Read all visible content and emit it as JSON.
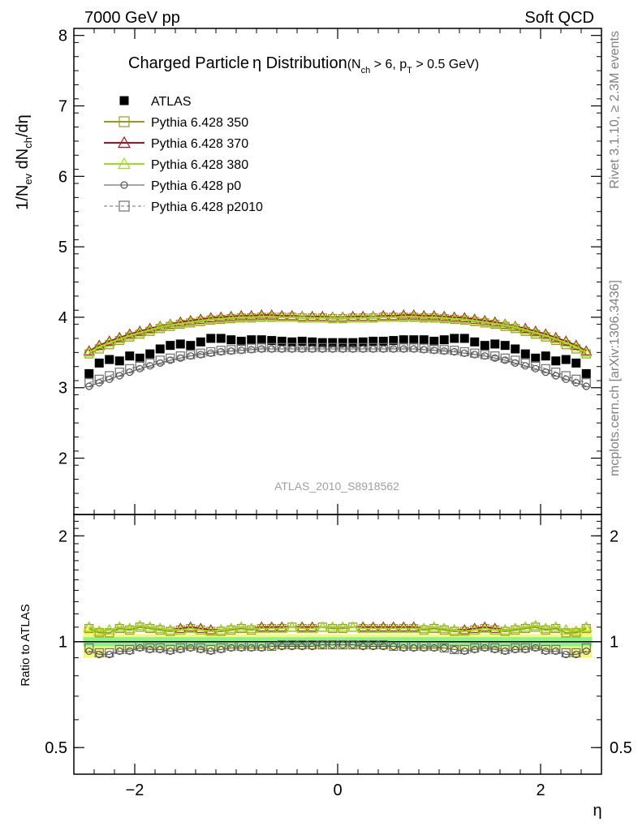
{
  "header": {
    "left": "7000 GeV pp",
    "right": "Soft QCD"
  },
  "side_labels": {
    "rivet": "Rivet 3.1.10, ≥ 2.3M events",
    "mcplots": "mcplots.cern.ch [arXiv:1306.3436]"
  },
  "colors": {
    "atlas": "#000000",
    "p350": "#9a9a20",
    "p370": "#aa1020",
    "p380": "#9ae020",
    "p0": "#505050",
    "p2010": "#707070",
    "band_inner": "#8cf08c",
    "band_outer": "#f8f878"
  },
  "chart_data": [
    {
      "type": "scatter",
      "title_main": "Charged Particle",
      "title_eta": "η",
      "title_rest": " Distribution",
      "title_paren_open": "(N",
      "title_sub_ch": "ch",
      "title_mid": " > 6, p",
      "title_sub_T": "T",
      "title_end": " > 0.5 GeV)",
      "ylabel_parts": {
        "a": "1/N",
        "sub_ev": "ev",
        "b": " dN",
        "sub_ch": "ch",
        "c": "/dη"
      },
      "analysis_label": "ATLAS_2010_S8918562",
      "ylim": [
        1.2,
        8.1
      ],
      "xlim": [
        -2.6,
        2.6
      ],
      "yticks": [
        2,
        3,
        4,
        5,
        6,
        7,
        8
      ],
      "ytick_labels": [
        "2",
        "3",
        "4",
        "5",
        "6",
        "7",
        "8"
      ],
      "legend_position": "top-left",
      "x": [
        -2.45,
        -2.35,
        -2.25,
        -2.15,
        -2.05,
        -1.95,
        -1.85,
        -1.75,
        -1.65,
        -1.55,
        -1.45,
        -1.35,
        -1.25,
        -1.15,
        -1.05,
        -0.95,
        -0.85,
        -0.75,
        -0.65,
        -0.55,
        -0.45,
        -0.35,
        -0.25,
        -0.15,
        -0.05,
        0.05,
        0.15,
        0.25,
        0.35,
        0.45,
        0.55,
        0.65,
        0.75,
        0.85,
        0.95,
        1.05,
        1.15,
        1.25,
        1.35,
        1.45,
        1.55,
        1.65,
        1.75,
        1.85,
        1.95,
        2.05,
        2.15,
        2.25,
        2.35,
        2.45
      ],
      "series": [
        {
          "name": "ATLAS",
          "key": "atlas",
          "marker": "filled-square",
          "values": [
            3.2,
            3.35,
            3.4,
            3.38,
            3.45,
            3.42,
            3.48,
            3.55,
            3.6,
            3.62,
            3.6,
            3.65,
            3.7,
            3.7,
            3.68,
            3.66,
            3.68,
            3.68,
            3.67,
            3.66,
            3.65,
            3.66,
            3.65,
            3.64,
            3.64,
            3.64,
            3.64,
            3.65,
            3.66,
            3.66,
            3.67,
            3.68,
            3.68,
            3.68,
            3.66,
            3.68,
            3.7,
            3.7,
            3.65,
            3.6,
            3.62,
            3.6,
            3.55,
            3.48,
            3.42,
            3.45,
            3.38,
            3.4,
            3.35,
            3.2
          ]
        },
        {
          "name": "Pythia 6.428 350",
          "key": "p350",
          "marker": "open-square",
          "values": [
            3.48,
            3.55,
            3.61,
            3.67,
            3.72,
            3.76,
            3.8,
            3.84,
            3.87,
            3.9,
            3.92,
            3.94,
            3.96,
            3.97,
            3.98,
            3.99,
            3.99,
            4.0,
            4.0,
            4.0,
            4.0,
            3.99,
            3.99,
            3.99,
            3.98,
            3.98,
            3.99,
            3.99,
            3.99,
            4.0,
            4.0,
            4.0,
            4.0,
            3.99,
            3.99,
            3.98,
            3.97,
            3.96,
            3.94,
            3.92,
            3.9,
            3.87,
            3.84,
            3.8,
            3.76,
            3.72,
            3.67,
            3.61,
            3.55,
            3.48
          ]
        },
        {
          "name": "Pythia 6.428 370",
          "key": "p370",
          "marker": "open-triangle",
          "values": [
            3.52,
            3.6,
            3.66,
            3.71,
            3.76,
            3.8,
            3.84,
            3.87,
            3.9,
            3.93,
            3.95,
            3.97,
            3.99,
            4.0,
            4.01,
            4.02,
            4.02,
            4.03,
            4.03,
            4.02,
            4.02,
            4.01,
            4.01,
            4.01,
            4.0,
            4.0,
            4.01,
            4.01,
            4.01,
            4.02,
            4.02,
            4.03,
            4.03,
            4.02,
            4.02,
            4.01,
            4.0,
            3.99,
            3.97,
            3.95,
            3.93,
            3.9,
            3.87,
            3.84,
            3.8,
            3.76,
            3.71,
            3.66,
            3.6,
            3.52
          ]
        },
        {
          "name": "Pythia 6.428 380",
          "key": "p380",
          "marker": "open-triangle",
          "values": [
            3.5,
            3.58,
            3.64,
            3.69,
            3.74,
            3.78,
            3.82,
            3.86,
            3.89,
            3.91,
            3.93,
            3.95,
            3.97,
            3.98,
            3.99,
            4.0,
            4.0,
            4.01,
            4.01,
            4.0,
            4.0,
            4.0,
            3.99,
            3.99,
            3.99,
            3.99,
            3.99,
            3.99,
            4.0,
            4.0,
            4.0,
            4.01,
            4.01,
            4.0,
            4.0,
            3.99,
            3.98,
            3.97,
            3.95,
            3.93,
            3.91,
            3.89,
            3.86,
            3.82,
            3.78,
            3.74,
            3.69,
            3.64,
            3.58,
            3.5
          ]
        },
        {
          "name": "Pythia 6.428 p0",
          "key": "p0",
          "marker": "open-circle",
          "values": [
            3.02,
            3.07,
            3.12,
            3.17,
            3.22,
            3.27,
            3.31,
            3.35,
            3.39,
            3.42,
            3.45,
            3.47,
            3.49,
            3.51,
            3.52,
            3.53,
            3.54,
            3.55,
            3.55,
            3.55,
            3.55,
            3.55,
            3.55,
            3.55,
            3.55,
            3.55,
            3.55,
            3.55,
            3.55,
            3.55,
            3.55,
            3.55,
            3.55,
            3.54,
            3.53,
            3.52,
            3.51,
            3.49,
            3.47,
            3.45,
            3.42,
            3.39,
            3.35,
            3.31,
            3.27,
            3.22,
            3.17,
            3.12,
            3.07,
            3.02
          ]
        },
        {
          "name": "Pythia 6.428 p2010",
          "key": "p2010",
          "marker": "open-square-dashed",
          "values": [
            3.07,
            3.12,
            3.17,
            3.22,
            3.27,
            3.31,
            3.35,
            3.39,
            3.42,
            3.45,
            3.47,
            3.49,
            3.51,
            3.53,
            3.54,
            3.55,
            3.56,
            3.57,
            3.57,
            3.57,
            3.57,
            3.57,
            3.57,
            3.57,
            3.57,
            3.57,
            3.57,
            3.57,
            3.57,
            3.57,
            3.57,
            3.57,
            3.57,
            3.56,
            3.55,
            3.54,
            3.53,
            3.51,
            3.49,
            3.47,
            3.45,
            3.42,
            3.39,
            3.35,
            3.31,
            3.27,
            3.22,
            3.17,
            3.12,
            3.07
          ]
        }
      ]
    },
    {
      "type": "scatter",
      "ylabel": "Ratio to ATLAS",
      "xlabel": "η",
      "ylim": [
        0.42,
        2.3
      ],
      "xlim": [
        -2.6,
        2.6
      ],
      "ylog": true,
      "yticks": [
        0.5,
        1,
        2
      ],
      "ytick_labels": [
        "0.5",
        "1",
        "2"
      ],
      "xticks": [
        -2,
        0,
        2
      ],
      "xtick_labels": [
        "−2",
        "0",
        "2"
      ],
      "reference_band": {
        "inner": 0.03,
        "outer_edges": 0.1
      },
      "series": [
        {
          "name": "Pythia 6.428 350",
          "key": "p350",
          "marker": "open-square",
          "values": [
            1.09,
            1.06,
            1.06,
            1.09,
            1.08,
            1.1,
            1.09,
            1.08,
            1.07,
            1.08,
            1.09,
            1.08,
            1.07,
            1.07,
            1.08,
            1.09,
            1.08,
            1.09,
            1.09,
            1.09,
            1.1,
            1.09,
            1.09,
            1.1,
            1.09,
            1.09,
            1.1,
            1.09,
            1.09,
            1.09,
            1.09,
            1.09,
            1.09,
            1.08,
            1.09,
            1.08,
            1.07,
            1.07,
            1.08,
            1.09,
            1.08,
            1.07,
            1.08,
            1.09,
            1.1,
            1.08,
            1.09,
            1.06,
            1.06,
            1.09
          ]
        },
        {
          "name": "Pythia 6.428 370",
          "key": "p370",
          "marker": "open-triangle",
          "values": [
            1.1,
            1.07,
            1.08,
            1.1,
            1.09,
            1.11,
            1.1,
            1.09,
            1.08,
            1.09,
            1.1,
            1.09,
            1.08,
            1.08,
            1.09,
            1.1,
            1.09,
            1.1,
            1.1,
            1.1,
            1.1,
            1.1,
            1.1,
            1.1,
            1.1,
            1.1,
            1.1,
            1.1,
            1.1,
            1.1,
            1.1,
            1.1,
            1.1,
            1.09,
            1.1,
            1.09,
            1.08,
            1.08,
            1.09,
            1.1,
            1.09,
            1.08,
            1.09,
            1.1,
            1.11,
            1.09,
            1.1,
            1.08,
            1.07,
            1.1
          ]
        },
        {
          "name": "Pythia 6.428 380",
          "key": "p380",
          "marker": "open-triangle",
          "values": [
            1.1,
            1.07,
            1.08,
            1.1,
            1.09,
            1.11,
            1.1,
            1.09,
            1.08,
            1.08,
            1.09,
            1.08,
            1.07,
            1.08,
            1.09,
            1.1,
            1.09,
            1.09,
            1.09,
            1.09,
            1.1,
            1.09,
            1.09,
            1.1,
            1.1,
            1.1,
            1.1,
            1.09,
            1.09,
            1.09,
            1.09,
            1.09,
            1.09,
            1.09,
            1.1,
            1.09,
            1.08,
            1.07,
            1.08,
            1.09,
            1.08,
            1.08,
            1.09,
            1.1,
            1.11,
            1.09,
            1.1,
            1.08,
            1.07,
            1.1
          ]
        },
        {
          "name": "Pythia 6.428 p0",
          "key": "p0",
          "marker": "open-circle",
          "values": [
            0.94,
            0.92,
            0.92,
            0.94,
            0.94,
            0.96,
            0.95,
            0.95,
            0.94,
            0.95,
            0.96,
            0.95,
            0.94,
            0.95,
            0.96,
            0.96,
            0.96,
            0.96,
            0.97,
            0.97,
            0.97,
            0.97,
            0.97,
            0.98,
            0.98,
            0.98,
            0.98,
            0.97,
            0.97,
            0.97,
            0.97,
            0.96,
            0.96,
            0.96,
            0.96,
            0.96,
            0.95,
            0.94,
            0.95,
            0.96,
            0.95,
            0.94,
            0.95,
            0.95,
            0.96,
            0.94,
            0.94,
            0.92,
            0.92,
            0.94
          ]
        },
        {
          "name": "Pythia 6.428 p2010",
          "key": "p2010",
          "marker": "open-square-dashed",
          "values": [
            0.96,
            0.93,
            0.93,
            0.95,
            0.95,
            0.97,
            0.96,
            0.96,
            0.95,
            0.96,
            0.97,
            0.96,
            0.95,
            0.96,
            0.97,
            0.97,
            0.97,
            0.97,
            0.97,
            0.98,
            0.98,
            0.98,
            0.98,
            0.98,
            0.98,
            0.98,
            0.98,
            0.98,
            0.98,
            0.98,
            0.97,
            0.97,
            0.97,
            0.97,
            0.97,
            0.96,
            0.95,
            0.95,
            0.96,
            0.97,
            0.96,
            0.95,
            0.96,
            0.96,
            0.97,
            0.95,
            0.95,
            0.93,
            0.93,
            0.96
          ]
        }
      ]
    }
  ]
}
